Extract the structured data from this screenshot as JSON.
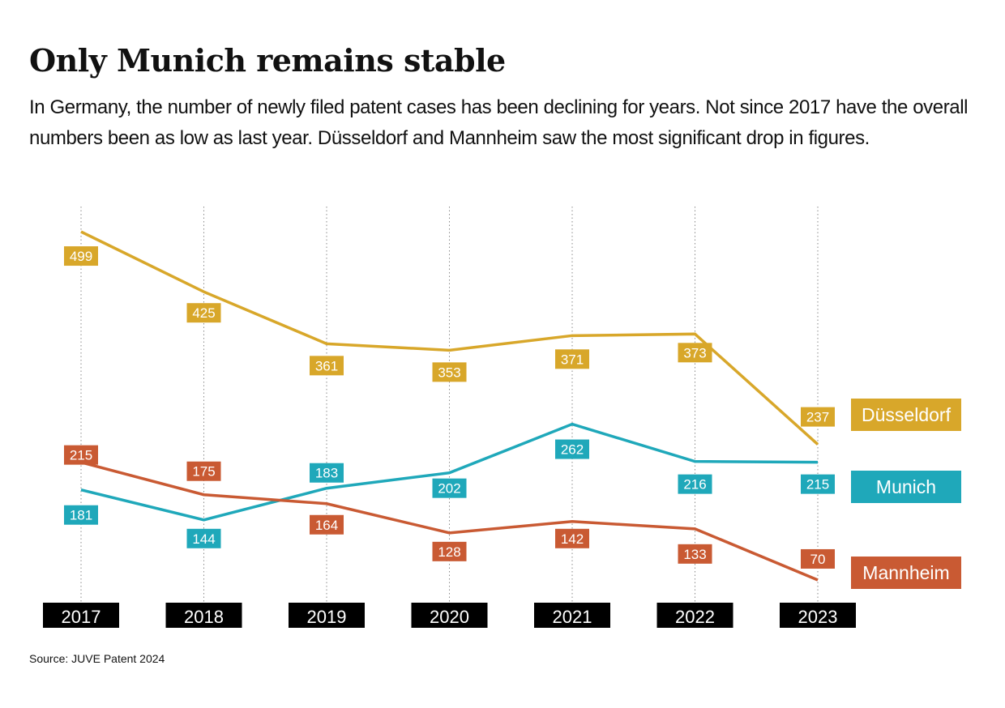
{
  "header": {
    "title": "Only Munich remains stable",
    "subtitle": "In Germany, the number of newly filed patent cases has been declining for years. Not since 2017 have the overall numbers been as low as last year. Düsseldorf and Mannheim saw the most significant drop in figures."
  },
  "footer": {
    "source": "Source: JUVE Patent 2024"
  },
  "chart_data": {
    "type": "line",
    "title": "Only Munich remains stable",
    "xlabel": "",
    "ylabel": "",
    "categories": [
      "2017",
      "2018",
      "2019",
      "2020",
      "2021",
      "2022",
      "2023"
    ],
    "ylim": [
      50,
      520
    ],
    "grid": "vertical dotted",
    "legend_placement": "right",
    "series": [
      {
        "name": "Düsseldorf",
        "color": "#D8A72A",
        "values": [
          499,
          425,
          361,
          353,
          371,
          373,
          237
        ]
      },
      {
        "name": "Munich",
        "color": "#1FA8BA",
        "values": [
          181,
          144,
          183,
          202,
          262,
          216,
          215
        ]
      },
      {
        "name": "Mannheim",
        "color": "#C95A33",
        "values": [
          215,
          175,
          164,
          128,
          142,
          133,
          70
        ]
      }
    ]
  }
}
